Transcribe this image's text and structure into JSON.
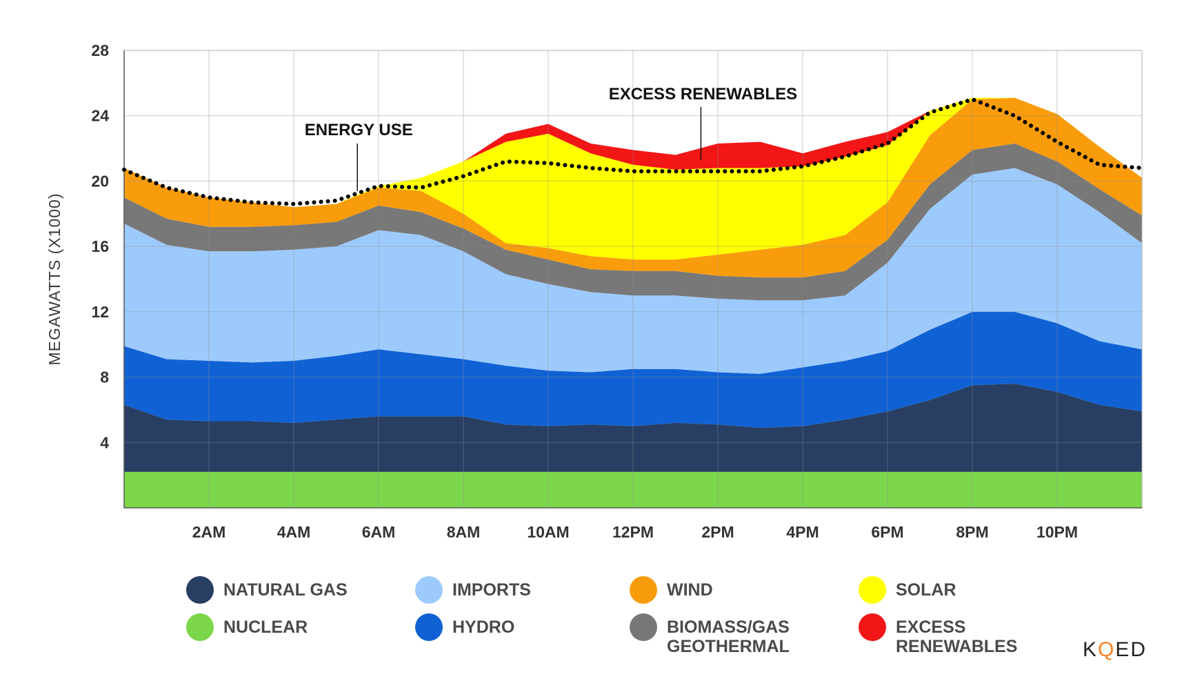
{
  "chart_data": {
    "type": "area",
    "title": "",
    "ylabel": "MEGAWATTS (X1000)",
    "xlabel": "",
    "ylim": [
      0,
      28
    ],
    "yticks": [
      4,
      8,
      12,
      16,
      20,
      24,
      28
    ],
    "xlim": [
      0,
      24
    ],
    "xticks": [
      {
        "x": 2,
        "label": "2AM"
      },
      {
        "x": 4,
        "label": "4AM"
      },
      {
        "x": 6,
        "label": "6AM"
      },
      {
        "x": 8,
        "label": "8AM"
      },
      {
        "x": 10,
        "label": "10AM"
      },
      {
        "x": 12,
        "label": "12PM"
      },
      {
        "x": 14,
        "label": "2PM"
      },
      {
        "x": 16,
        "label": "4PM"
      },
      {
        "x": 18,
        "label": "6PM"
      },
      {
        "x": 20,
        "label": "8PM"
      },
      {
        "x": 22,
        "label": "10PM"
      }
    ],
    "grid": true,
    "x": [
      0,
      1,
      2,
      3,
      4,
      5,
      6,
      7,
      8,
      9,
      10,
      11,
      12,
      13,
      14,
      15,
      16,
      17,
      18,
      19,
      20,
      21,
      22,
      23,
      24
    ],
    "series": [
      {
        "name": "NUCLEAR",
        "color": "#7cd64a",
        "values": [
          2.2,
          2.2,
          2.2,
          2.2,
          2.2,
          2.2,
          2.2,
          2.2,
          2.2,
          2.2,
          2.2,
          2.2,
          2.2,
          2.2,
          2.2,
          2.2,
          2.2,
          2.2,
          2.2,
          2.2,
          2.2,
          2.2,
          2.2,
          2.2,
          2.2
        ]
      },
      {
        "name": "NATURAL GAS",
        "color": "#283f63",
        "values": [
          4.1,
          3.2,
          3.1,
          3.1,
          3.0,
          3.2,
          3.4,
          3.4,
          3.4,
          2.9,
          2.8,
          2.9,
          2.8,
          3.0,
          2.9,
          2.7,
          2.8,
          3.2,
          3.7,
          4.4,
          5.3,
          5.4,
          4.9,
          4.1,
          3.7
        ]
      },
      {
        "name": "HYDRO",
        "color": "#1062d4",
        "values": [
          3.6,
          3.7,
          3.7,
          3.6,
          3.8,
          3.9,
          4.1,
          3.8,
          3.5,
          3.6,
          3.4,
          3.2,
          3.5,
          3.3,
          3.2,
          3.3,
          3.6,
          3.6,
          3.7,
          4.3,
          4.5,
          4.4,
          4.2,
          3.9,
          3.8
        ]
      },
      {
        "name": "IMPORTS",
        "color": "#9dcafc",
        "values": [
          7.5,
          7.0,
          6.7,
          6.8,
          6.8,
          6.7,
          7.3,
          7.3,
          6.6,
          5.6,
          5.3,
          4.9,
          4.5,
          4.5,
          4.5,
          4.5,
          4.1,
          4.0,
          5.4,
          7.4,
          8.4,
          8.8,
          8.5,
          7.9,
          6.5
        ]
      },
      {
        "name": "BIOMASS/GAS\nGEOTHERMAL",
        "color": "#787878",
        "values": [
          1.6,
          1.6,
          1.5,
          1.5,
          1.5,
          1.5,
          1.5,
          1.4,
          1.4,
          1.5,
          1.5,
          1.4,
          1.5,
          1.5,
          1.4,
          1.4,
          1.4,
          1.5,
          1.4,
          1.5,
          1.5,
          1.5,
          1.4,
          1.4,
          1.7
        ]
      },
      {
        "name": "WIND",
        "color": "#f99c0c",
        "values": [
          1.8,
          1.9,
          1.8,
          1.5,
          1.1,
          1.1,
          1.1,
          1.3,
          0.9,
          0.4,
          0.7,
          0.8,
          0.7,
          0.7,
          1.3,
          1.7,
          2.0,
          2.2,
          2.3,
          3.0,
          3.1,
          2.8,
          2.9,
          2.6,
          2.3
        ]
      },
      {
        "name": "SOLAR",
        "color": "#ffff00",
        "values": [
          0,
          0,
          0,
          0,
          0,
          0,
          0.1,
          0.8,
          3.2,
          6.2,
          7.0,
          6.3,
          5.8,
          5.5,
          5.3,
          5.0,
          4.8,
          4.8,
          3.5,
          1.5,
          0.1,
          0,
          0,
          0,
          0
        ]
      },
      {
        "name": "EXCESS RENEWABLES",
        "color": "#f21616",
        "values": [
          0,
          0,
          0,
          0,
          0,
          0,
          0,
          0,
          0,
          0.5,
          0.6,
          0.6,
          0.9,
          0.9,
          1.5,
          1.6,
          0.8,
          0.9,
          0.8,
          0,
          0,
          0,
          0,
          0,
          0
        ]
      }
    ],
    "energy_use": {
      "name": "ENERGY USE",
      "values": [
        20.7,
        19.6,
        19.0,
        18.7,
        18.6,
        18.8,
        19.7,
        19.6,
        20.3,
        21.2,
        21.1,
        20.8,
        20.6,
        20.6,
        20.6,
        20.6,
        20.9,
        21.5,
        22.3,
        24.2,
        25.0,
        24.0,
        22.4,
        21.0,
        20.8
      ]
    },
    "annotations": [
      {
        "text": "ENERGY USE",
        "x": 5.5,
        "points_to": 19.3
      },
      {
        "text": "EXCESS RENEWABLES",
        "x": 13.6,
        "points_to": 21.3
      }
    ],
    "legend": {
      "placement": "bottom",
      "items": [
        {
          "label": "NATURAL GAS",
          "color": "#283f63"
        },
        {
          "label": "IMPORTS",
          "color": "#9dcafc"
        },
        {
          "label": "WIND",
          "color": "#f99c0c"
        },
        {
          "label": "SOLAR",
          "color": "#ffff00"
        },
        {
          "label": "NUCLEAR",
          "color": "#7cd64a"
        },
        {
          "label": "HYDRO",
          "color": "#1062d4"
        },
        {
          "label": "BIOMASS/GAS\nGEOTHERMAL",
          "color": "#787878"
        },
        {
          "label": "EXCESS\nRENEWABLES",
          "color": "#f21616"
        }
      ]
    }
  },
  "branding": {
    "logo_text_1": "K",
    "logo_text_2": "Q",
    "logo_text_3": "ED"
  }
}
